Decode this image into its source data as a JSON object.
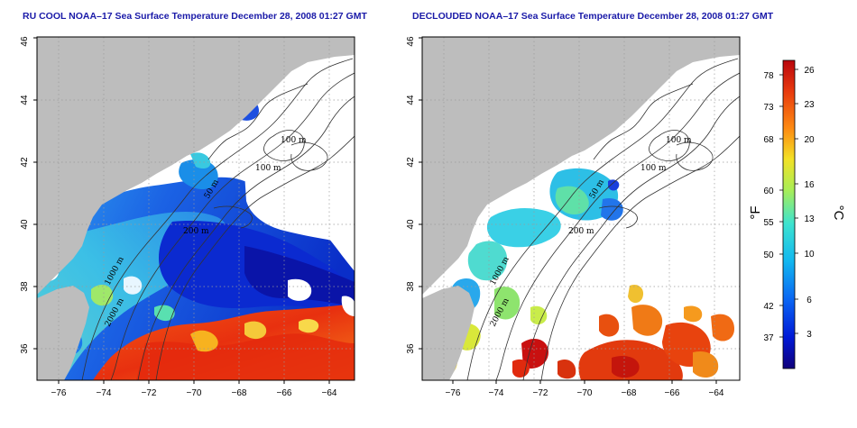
{
  "panels": [
    {
      "title": "RU COOL NOAA–17 Sea Surface Temperature December 28, 2008 01:27 GMT",
      "contour_labels": [
        "100 m",
        "100 m",
        "50 m",
        "200 m",
        "1000 m",
        "2000 m"
      ]
    },
    {
      "title": "DECLOUDED NOAA–17 Sea Surface Temperature December 28, 2008 01:27 GMT",
      "contour_labels": [
        "100 m",
        "100 m",
        "50 m",
        "200 m",
        "1000 m",
        "2000 m"
      ]
    }
  ],
  "map": {
    "lon_ticks": [
      "−76",
      "−74",
      "−72",
      "−70",
      "−68",
      "−66",
      "−64"
    ],
    "lat_ticks": [
      "36",
      "38",
      "40",
      "42",
      "44",
      "46"
    ],
    "lon_range": [
      -77,
      -63
    ],
    "lat_range": [
      35,
      46
    ],
    "grid": "dotted",
    "land_color": "#bdbdbd",
    "cloud_color": "#ffffff"
  },
  "colorbar": {
    "fahrenheit_ticks": [
      "78",
      "73",
      "68",
      "60",
      "55",
      "50",
      "42",
      "37"
    ],
    "celsius_ticks": [
      "26",
      "23",
      "20",
      "16",
      "13",
      "10",
      "6",
      "3"
    ],
    "fahrenheit_unit": "°F",
    "celsius_unit": "°C",
    "colors": [
      "#10007a",
      "#0019d6",
      "#0a63f2",
      "#12b8f0",
      "#3de3cf",
      "#a9ee56",
      "#f3e126",
      "#fd8a12",
      "#e83a0e",
      "#b9050d"
    ]
  }
}
